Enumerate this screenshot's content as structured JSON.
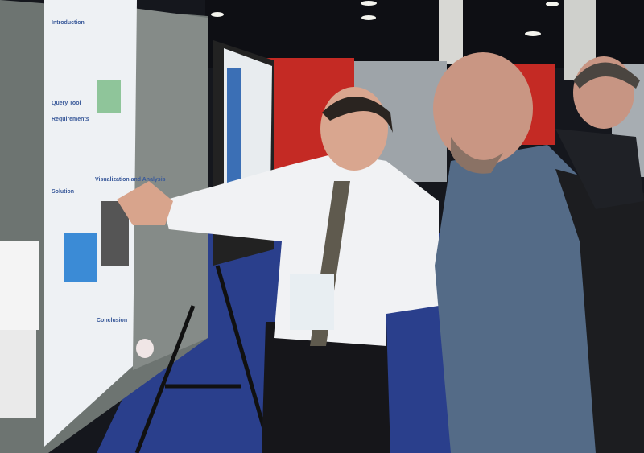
{
  "poster": {
    "headings": [
      "Introduction",
      "Query Tool",
      "Requirements",
      "Solution",
      "Visualization and Analysis",
      "Conclusion"
    ]
  }
}
